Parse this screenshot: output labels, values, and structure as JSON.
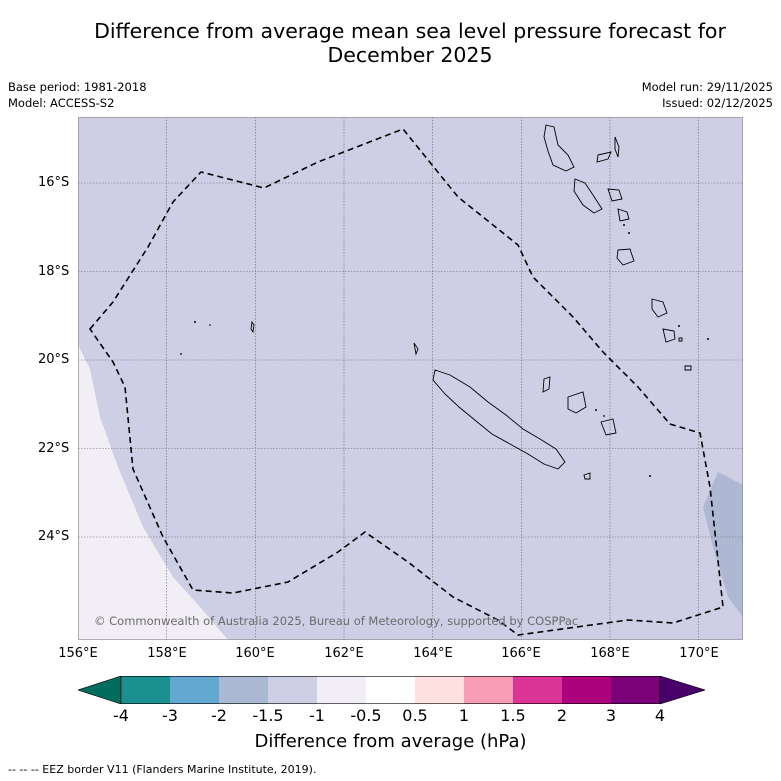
{
  "title": "Difference from average mean sea level pressure forecast for December 2025",
  "meta": {
    "base_period": "Base period: 1981-2018",
    "model": "Model: ACCESS-S2",
    "model_run": "Model run: 29/11/2025",
    "issued": "Issued: 02/12/2025"
  },
  "copyright": "© Commonwealth of Australia 2025, Bureau of Meteorology, supported by COSPPac",
  "map": {
    "lon_range": [
      156,
      171
    ],
    "lat_range": [
      -26.0,
      -14.8
    ],
    "lat_ticks": [
      "16°S",
      "18°S",
      "20°S",
      "22°S",
      "24°S"
    ],
    "lon_ticks": [
      "156°E",
      "158°E",
      "160°E",
      "162°E",
      "164°E",
      "166°E",
      "168°E",
      "170°E"
    ],
    "background_category": "-1.5 to -1",
    "west_strip_category": "-1 to -0.5",
    "southeast_patch_category": "-2 to -1.5"
  },
  "colorbar": {
    "labels": [
      "-4",
      "-3",
      "-2",
      "-1.5",
      "-1",
      "-0.5",
      "0.5",
      "1",
      "1.5",
      "2",
      "3",
      "4"
    ],
    "colors": [
      "#1a9090",
      "#63a8d0",
      "#abb8d3",
      "#cecfe5",
      "#f2eef5",
      "#ffffff",
      "#fee0e0",
      "#f89db5",
      "#dd3497",
      "#ae017e",
      "#7a0177"
    ],
    "under_color": "#006d5e",
    "over_color": "#49006a",
    "title": "Difference from average (hPa)"
  },
  "legend": "-- -- -- EEZ border V11 (Flanders Marine Institute, 2019)."
}
